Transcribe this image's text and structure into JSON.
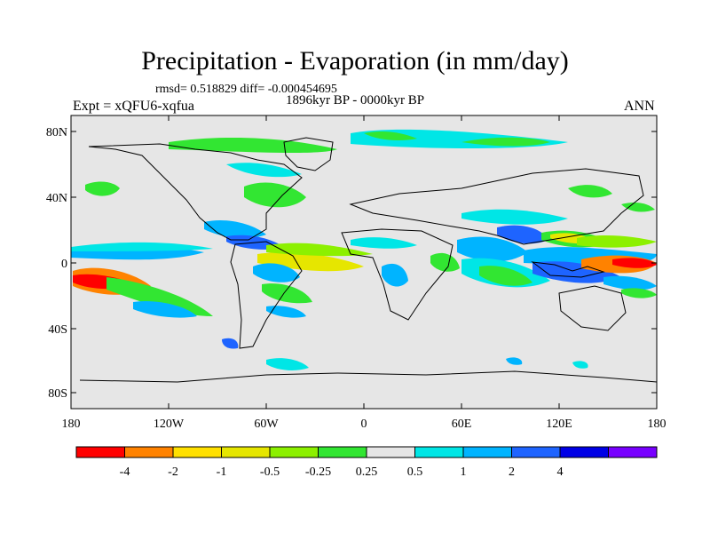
{
  "title": "Precipitation - Evaporation (in mm/day)",
  "stats": "rmsd= 0.518829  diff= -0.000454695",
  "period": "1896kyr BP - 0000kyr BP",
  "experiment": "Expt = xQFU6-xqfua",
  "season": "ANN",
  "lat_ticks": [
    "80N",
    "40N",
    "0",
    "40S",
    "80S"
  ],
  "lon_ticks": [
    "180",
    "120W",
    "60W",
    "0",
    "60E",
    "120E",
    "180"
  ],
  "colorbar": {
    "labels": [
      "-4",
      "-2",
      "-1",
      "-0.5",
      "-0.25",
      "0.25",
      "0.5",
      "1",
      "2",
      "4"
    ],
    "colors": [
      "#ff0000",
      "#ff8200",
      "#ffe000",
      "#e6e600",
      "#8cf000",
      "#32e632",
      "#e6e6e6",
      "#00e6e6",
      "#00b4ff",
      "#1e64ff",
      "#0000e6",
      "#7800ff"
    ]
  }
}
